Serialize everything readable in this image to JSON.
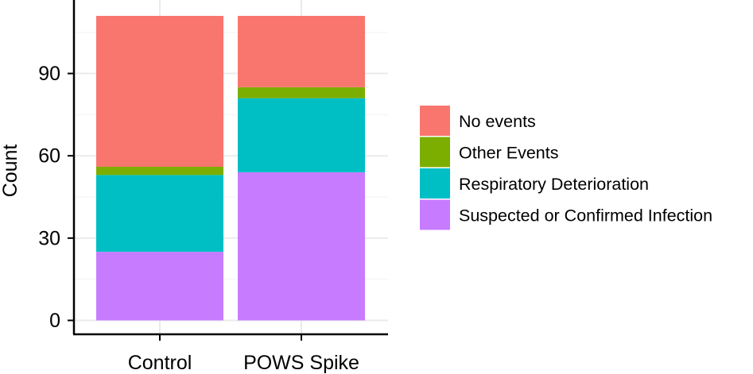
{
  "chart_data": {
    "type": "bar",
    "stacked": true,
    "title": "",
    "xlabel": "",
    "ylabel": "Count",
    "categories": [
      "Control",
      "POWS Spike"
    ],
    "ylim": [
      0,
      111
    ],
    "yticks": [
      0,
      30,
      60,
      90
    ],
    "grid": true,
    "legend_position": "right",
    "series": [
      {
        "name": "Suspected or Confirmed Infection",
        "color": "#C77CFF",
        "values": [
          25,
          54
        ]
      },
      {
        "name": "Respiratory Deterioration",
        "color": "#00BFC4",
        "values": [
          28,
          27
        ]
      },
      {
        "name": "Other Events",
        "color": "#7CAE00",
        "values": [
          3,
          4
        ]
      },
      {
        "name": "No events",
        "color": "#F8766D",
        "values": [
          55,
          26
        ]
      }
    ],
    "legend_order": [
      "No events",
      "Other Events",
      "Respiratory Deterioration",
      "Suspected or Confirmed Infection"
    ]
  }
}
